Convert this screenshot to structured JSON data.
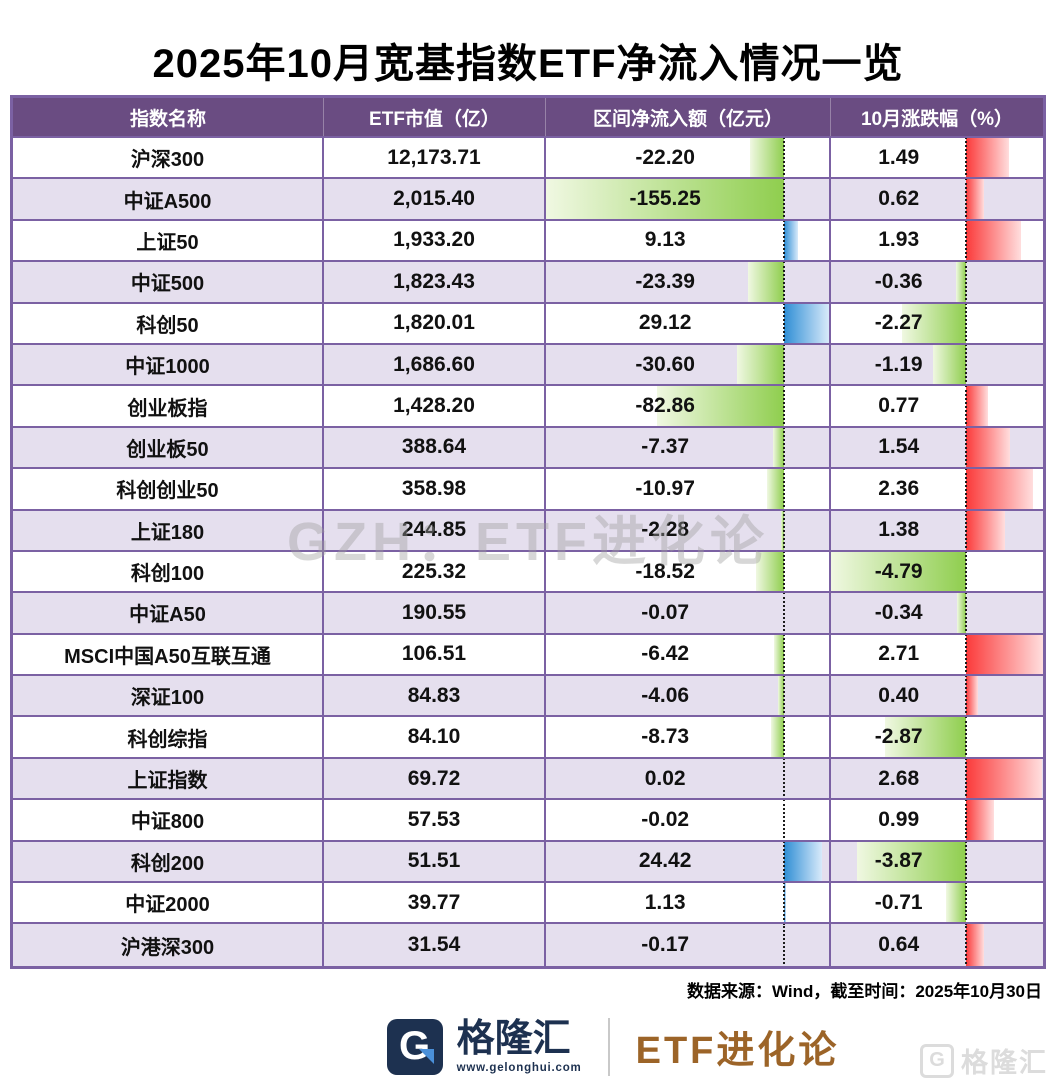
{
  "title": "2025年10月宽基指数ETF净流入情况一览",
  "watermark_center": "GZH：ETF进化论",
  "source_note": "数据来源：Wind，截至时间：2025年10月30日",
  "footer": {
    "brand_icon": "gelonghui-g-logo",
    "brand_letter": "G",
    "brand_name": "格隆汇",
    "brand_url": "www.gelonghui.com",
    "brand_right": "ETF进化论",
    "corner_letter": "G",
    "corner_name": "格隆汇"
  },
  "colors": {
    "header_bg": "#6a4c82",
    "border": "#7b61a3",
    "row_alt_bg": "#e5dfee",
    "bar_green": "#8fce4e",
    "bar_green_fade": "#f0f8e2",
    "bar_blue": "#2f8ed5",
    "bar_blue_fade": "#d8eafa",
    "bar_red": "#fb3a3a",
    "bar_red_fade": "#ffdede",
    "brand_navy": "#1d3150",
    "brand_bronze": "#9c6428"
  },
  "chart_data": {
    "type": "table",
    "title": "2025年10月宽基指数ETF净流入情况一览",
    "columns": [
      "指数名称",
      "ETF市值（亿）",
      "区间净流入额（亿元）",
      "10月涨跌幅（%）"
    ],
    "inflow_axis": {
      "min": -155.25,
      "max": 29.12
    },
    "change_axis": {
      "min": -4.79,
      "max": 2.71
    },
    "bar_legend": "负净流入为绿色条，正净流入为蓝色条；上涨为红色条，下跌为绿色条",
    "rows": [
      {
        "name": "沪深300",
        "market_cap": "12,173.71",
        "inflow": -22.2,
        "change": 1.49
      },
      {
        "name": "中证A500",
        "market_cap": "2,015.40",
        "inflow": -155.25,
        "change": 0.62
      },
      {
        "name": "上证50",
        "market_cap": "1,933.20",
        "inflow": 9.13,
        "change": 1.93
      },
      {
        "name": "中证500",
        "market_cap": "1,823.43",
        "inflow": -23.39,
        "change": -0.36
      },
      {
        "name": "科创50",
        "market_cap": "1,820.01",
        "inflow": 29.12,
        "change": -2.27
      },
      {
        "name": "中证1000",
        "market_cap": "1,686.60",
        "inflow": -30.6,
        "change": -1.19
      },
      {
        "name": "创业板指",
        "market_cap": "1,428.20",
        "inflow": -82.86,
        "change": 0.77
      },
      {
        "name": "创业板50",
        "market_cap": "388.64",
        "inflow": -7.37,
        "change": 1.54
      },
      {
        "name": "科创创业50",
        "market_cap": "358.98",
        "inflow": -10.97,
        "change": 2.36
      },
      {
        "name": "上证180",
        "market_cap": "244.85",
        "inflow": -2.28,
        "change": 1.38
      },
      {
        "name": "科创100",
        "market_cap": "225.32",
        "inflow": -18.52,
        "change": -4.79
      },
      {
        "name": "中证A50",
        "market_cap": "190.55",
        "inflow": -0.07,
        "change": -0.34
      },
      {
        "name": "MSCI中国A50互联互通",
        "market_cap": "106.51",
        "inflow": -6.42,
        "change": 2.71
      },
      {
        "name": "深证100",
        "market_cap": "84.83",
        "inflow": -4.06,
        "change": 0.4
      },
      {
        "name": "科创综指",
        "market_cap": "84.10",
        "inflow": -8.73,
        "change": -2.87
      },
      {
        "name": "上证指数",
        "market_cap": "69.72",
        "inflow": 0.02,
        "change": 2.68
      },
      {
        "name": "中证800",
        "market_cap": "57.53",
        "inflow": -0.02,
        "change": 0.99
      },
      {
        "name": "科创200",
        "market_cap": "51.51",
        "inflow": 24.42,
        "change": -3.87
      },
      {
        "name": "中证2000",
        "market_cap": "39.77",
        "inflow": 1.13,
        "change": -0.71
      },
      {
        "name": "沪港深300",
        "market_cap": "31.54",
        "inflow": -0.17,
        "change": 0.64
      }
    ]
  }
}
